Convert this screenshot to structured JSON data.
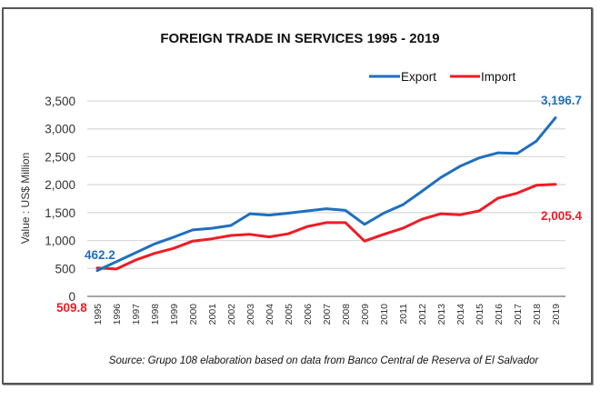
{
  "chart_data": {
    "type": "line",
    "title": "FOREIGN TRADE IN SERVICES 1995 - 2019",
    "xlabel": "",
    "ylabel": "Value : US$ Million",
    "ylim": [
      0,
      3500
    ],
    "yticks": [
      0,
      500,
      1000,
      1500,
      2000,
      2500,
      3000,
      3500
    ],
    "ytick_labels": [
      "0",
      "500",
      "1,000",
      "1,500",
      "2,000",
      "2,500",
      "3,000",
      "3,500"
    ],
    "grid": true,
    "legend_position": "top-right",
    "x": [
      "1995",
      "1996",
      "1997",
      "1998",
      "1999",
      "2000",
      "2001",
      "2002",
      "2003",
      "2004",
      "2005",
      "2006",
      "2007",
      "2008",
      "2009",
      "2010",
      "2011",
      "2012",
      "2013",
      "2014",
      "2015",
      "2016",
      "2017",
      "2018",
      "2019"
    ],
    "series": [
      {
        "name": "Export",
        "color": "#1f6fbf",
        "values": [
          462.2,
          620,
          780,
          940,
          1060,
          1190,
          1220,
          1270,
          1480,
          1455,
          1490,
          1530,
          1570,
          1540,
          1290,
          1490,
          1640,
          1880,
          2130,
          2330,
          2480,
          2570,
          2560,
          2780,
          3196.7
        ]
      },
      {
        "name": "Import",
        "color": "#ee1c25",
        "values": [
          509.8,
          490,
          650,
          770,
          860,
          990,
          1030,
          1090,
          1110,
          1065,
          1120,
          1250,
          1320,
          1320,
          990,
          1110,
          1220,
          1380,
          1480,
          1460,
          1530,
          1760,
          1850,
          1990,
          2005.4
        ]
      }
    ],
    "annotations": [
      {
        "series": "Export",
        "x": "1995",
        "text": "462.2"
      },
      {
        "series": "Import",
        "x": "1995",
        "text": "509.8"
      },
      {
        "series": "Export",
        "x": "2019",
        "text": "3,196.7"
      },
      {
        "series": "Import",
        "x": "2019",
        "text": "2,005.4"
      }
    ],
    "source": "Source: Grupo 108 elaboration based on data from Banco Central de Reserva of El Salvador"
  }
}
